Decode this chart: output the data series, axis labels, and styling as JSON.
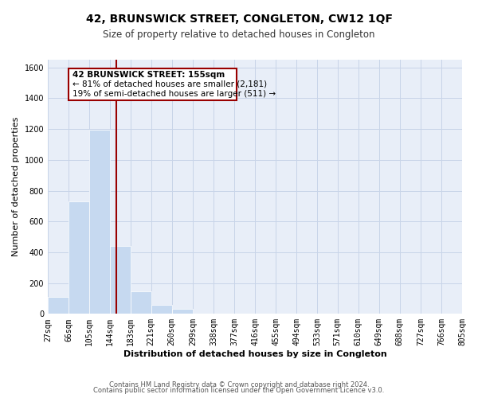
{
  "title": "42, BRUNSWICK STREET, CONGLETON, CW12 1QF",
  "subtitle": "Size of property relative to detached houses in Congleton",
  "xlabel": "Distribution of detached houses by size in Congleton",
  "ylabel": "Number of detached properties",
  "footer_line1": "Contains HM Land Registry data © Crown copyright and database right 2024.",
  "footer_line2": "Contains public sector information licensed under the Open Government Licence v3.0.",
  "bar_edges": [
    27,
    66,
    105,
    144,
    183,
    221,
    260,
    299,
    338,
    377,
    416,
    455,
    494,
    533,
    571,
    610,
    649,
    688,
    727,
    766,
    805
  ],
  "bar_heights": [
    110,
    730,
    1195,
    440,
    145,
    60,
    35,
    0,
    0,
    0,
    0,
    0,
    0,
    0,
    0,
    0,
    0,
    0,
    0,
    0
  ],
  "bar_color": "#c6d9f0",
  "bar_edge_color": "#c6d9f0",
  "tick_labels": [
    "27sqm",
    "66sqm",
    "105sqm",
    "144sqm",
    "183sqm",
    "221sqm",
    "260sqm",
    "299sqm",
    "338sqm",
    "377sqm",
    "416sqm",
    "455sqm",
    "494sqm",
    "533sqm",
    "571sqm",
    "610sqm",
    "649sqm",
    "688sqm",
    "727sqm",
    "766sqm",
    "805sqm"
  ],
  "ylim": [
    0,
    1650
  ],
  "yticks": [
    0,
    200,
    400,
    600,
    800,
    1000,
    1200,
    1400,
    1600
  ],
  "vline_x": 155,
  "vline_color": "#990000",
  "annotation_title": "42 BRUNSWICK STREET: 155sqm",
  "annotation_line1": "← 81% of detached houses are smaller (2,181)",
  "annotation_line2": "19% of semi-detached houses are larger (511) →",
  "grid_color": "#c8d4e8",
  "background_color": "#e8eef8",
  "title_fontsize": 10,
  "subtitle_fontsize": 8.5,
  "axis_label_fontsize": 8,
  "tick_fontsize": 7
}
